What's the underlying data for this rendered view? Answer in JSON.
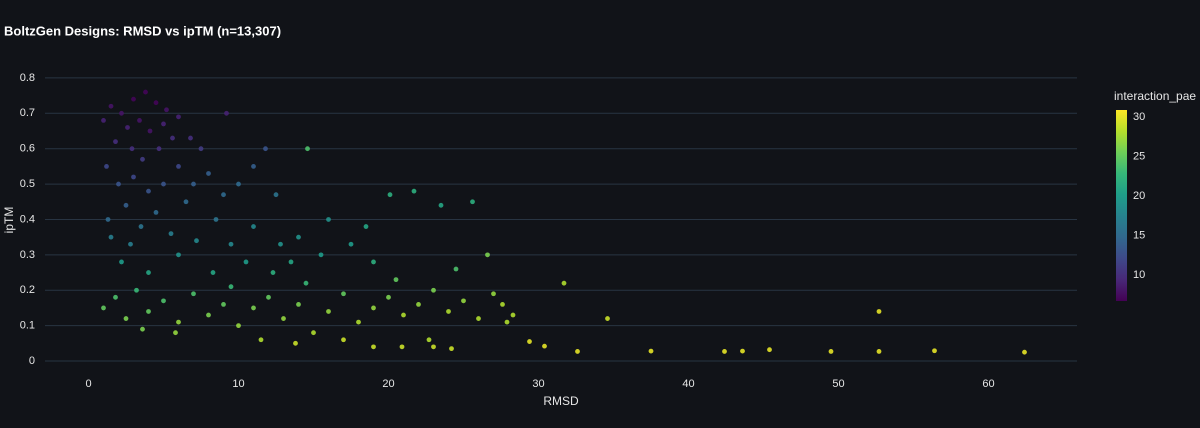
{
  "chart_data": {
    "type": "scatter",
    "title": "BoltzGen Designs: RMSD vs ipTM (n=13,307)",
    "x_label": "RMSD",
    "y_label": "ipTM",
    "xlim": [
      -2.9,
      65.9
    ],
    "xticks": [
      0,
      10,
      20,
      30,
      40,
      50,
      60
    ],
    "ylim": [
      -0.048,
      0.845
    ],
    "yticks": [
      0,
      0.1,
      0.2,
      0.3,
      0.4,
      0.5,
      0.6,
      0.7,
      0.8
    ],
    "grid": true,
    "colorscale": [
      "#440154",
      "#482878",
      "#3e4989",
      "#31688e",
      "#26828e",
      "#1f9e89",
      "#35b779",
      "#6ece58",
      "#b5de2b",
      "#fde725"
    ],
    "colorbar": {
      "title": "interaction_pae",
      "lim": [
        6.7,
        30.9
      ],
      "ticks": [
        10,
        15,
        20,
        25,
        30
      ]
    },
    "x": [
      31.7,
      34.6,
      29.4,
      30.4,
      32.6,
      37.5,
      42.4,
      43.6,
      45.4,
      49.5,
      52.7,
      52.7,
      56.4,
      62.4,
      28.3,
      27.9,
      26.6,
      25.6,
      23.5,
      21.7,
      20.1,
      14.6,
      19.0,
      20.9,
      23.0,
      24.2,
      22.7,
      1.5,
      2.2,
      3.0,
      3.8,
      4.5,
      5.2,
      2.6,
      3.4,
      4.1,
      5.0,
      6.0,
      6.8,
      1.0,
      1.8,
      2.9,
      4.7,
      7.5,
      9.2,
      5.6,
      3.6,
      1.2,
      2.0,
      3.0,
      4.0,
      5.0,
      6.0,
      7.0,
      8.0,
      9.0,
      10.0,
      11.0,
      2.5,
      4.5,
      6.5,
      8.5,
      12.5,
      11.8,
      1.3,
      1.5,
      2.8,
      3.5,
      5.5,
      7.2,
      9.5,
      11.0,
      12.8,
      14.0,
      15.5,
      16.0,
      17.5,
      18.5,
      10.5,
      6.0,
      2.2,
      13.5,
      8.3,
      19.0,
      4.0,
      1.0,
      1.8,
      2.5,
      3.2,
      4.0,
      5.0,
      6.0,
      7.0,
      8.0,
      9.0,
      10.0,
      11.0,
      12.0,
      13.0,
      14.0,
      15.0,
      16.0,
      17.0,
      18.0,
      19.0,
      20.0,
      21.0,
      22.0,
      23.0,
      24.0,
      25.0,
      26.0,
      27.0,
      27.6,
      3.6,
      5.8,
      11.5,
      13.8,
      17.0,
      9.5,
      14.5,
      20.5,
      24.5,
      12.3
    ],
    "y": [
      0.22,
      0.12,
      0.055,
      0.042,
      0.027,
      0.028,
      0.027,
      0.028,
      0.032,
      0.027,
      0.027,
      0.14,
      0.029,
      0.025,
      0.13,
      0.11,
      0.3,
      0.45,
      0.44,
      0.48,
      0.47,
      0.6,
      0.04,
      0.04,
      0.04,
      0.035,
      0.06,
      0.72,
      0.7,
      0.74,
      0.76,
      0.73,
      0.71,
      0.66,
      0.68,
      0.65,
      0.67,
      0.69,
      0.63,
      0.68,
      0.62,
      0.6,
      0.6,
      0.6,
      0.7,
      0.63,
      0.57,
      0.55,
      0.5,
      0.52,
      0.48,
      0.5,
      0.55,
      0.5,
      0.53,
      0.47,
      0.5,
      0.55,
      0.44,
      0.42,
      0.45,
      0.4,
      0.47,
      0.6,
      0.4,
      0.35,
      0.33,
      0.38,
      0.36,
      0.34,
      0.33,
      0.38,
      0.33,
      0.35,
      0.3,
      0.4,
      0.33,
      0.38,
      0.28,
      0.3,
      0.28,
      0.28,
      0.25,
      0.28,
      0.25,
      0.15,
      0.18,
      0.12,
      0.2,
      0.14,
      0.17,
      0.11,
      0.19,
      0.13,
      0.16,
      0.1,
      0.15,
      0.18,
      0.12,
      0.16,
      0.08,
      0.14,
      0.19,
      0.11,
      0.15,
      0.18,
      0.13,
      0.16,
      0.2,
      0.14,
      0.17,
      0.12,
      0.19,
      0.16,
      0.09,
      0.08,
      0.06,
      0.05,
      0.06,
      0.21,
      0.22,
      0.23,
      0.26,
      0.25
    ],
    "color_values": [
      28,
      29,
      30,
      30,
      30,
      30,
      30,
      30,
      30,
      30,
      30,
      30,
      30,
      30,
      28,
      28,
      26,
      22,
      21,
      22,
      22,
      24,
      29,
      29,
      29,
      29,
      28,
      8,
      8,
      7,
      7,
      7,
      8,
      9,
      8,
      8,
      9,
      9,
      10,
      9,
      10,
      10,
      10,
      11,
      9,
      10,
      11,
      12,
      13,
      12,
      13,
      13,
      12,
      14,
      14,
      15,
      15,
      14,
      14,
      15,
      15,
      16,
      16,
      13,
      15,
      17,
      17,
      16,
      17,
      18,
      18,
      18,
      19,
      19,
      20,
      19,
      20,
      21,
      20,
      19,
      20,
      21,
      21,
      22,
      21,
      25,
      24,
      26,
      23,
      25,
      24,
      27,
      24,
      26,
      25,
      27,
      26,
      25,
      27,
      26,
      28,
      27,
      25,
      28,
      27,
      26,
      28,
      27,
      26,
      28,
      27,
      28,
      27,
      28,
      26,
      27,
      28,
      29,
      29,
      23,
      23,
      25,
      24,
      22
    ]
  }
}
